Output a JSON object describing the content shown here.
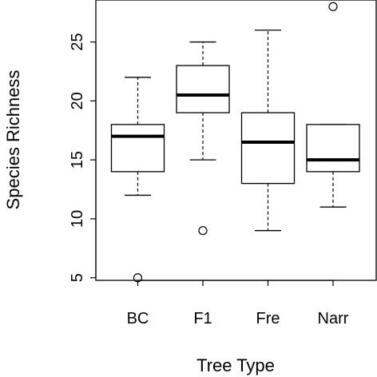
{
  "chart_data": {
    "type": "boxplot",
    "xlabel": "Tree Type",
    "ylabel": "Species Richness",
    "categories": [
      "BC",
      "F1",
      "Fre",
      "Narr"
    ],
    "ylim": [
      4,
      29
    ],
    "yticks": [
      5,
      10,
      15,
      20,
      25
    ],
    "ytick_labels": [
      "5",
      "10",
      "15",
      "20",
      "25"
    ],
    "grid": false,
    "boxes": [
      {
        "category": "BC",
        "whisker_low": 12,
        "q1": 14,
        "median": 17,
        "q3": 18,
        "whisker_high": 22,
        "outliers": [
          5
        ]
      },
      {
        "category": "F1",
        "whisker_low": 15,
        "q1": 19,
        "median": 20.5,
        "q3": 23,
        "whisker_high": 25,
        "outliers": [
          9
        ]
      },
      {
        "category": "Fre",
        "whisker_low": 9,
        "q1": 13,
        "median": 16.5,
        "q3": 19,
        "whisker_high": 26,
        "outliers": []
      },
      {
        "category": "Narr",
        "whisker_low": 11,
        "q1": 14,
        "median": 15,
        "q3": 18,
        "whisker_high": 18,
        "outliers": [
          28
        ]
      }
    ],
    "colors": {
      "box_fill": "#ffffff",
      "stroke": "#000000"
    }
  }
}
